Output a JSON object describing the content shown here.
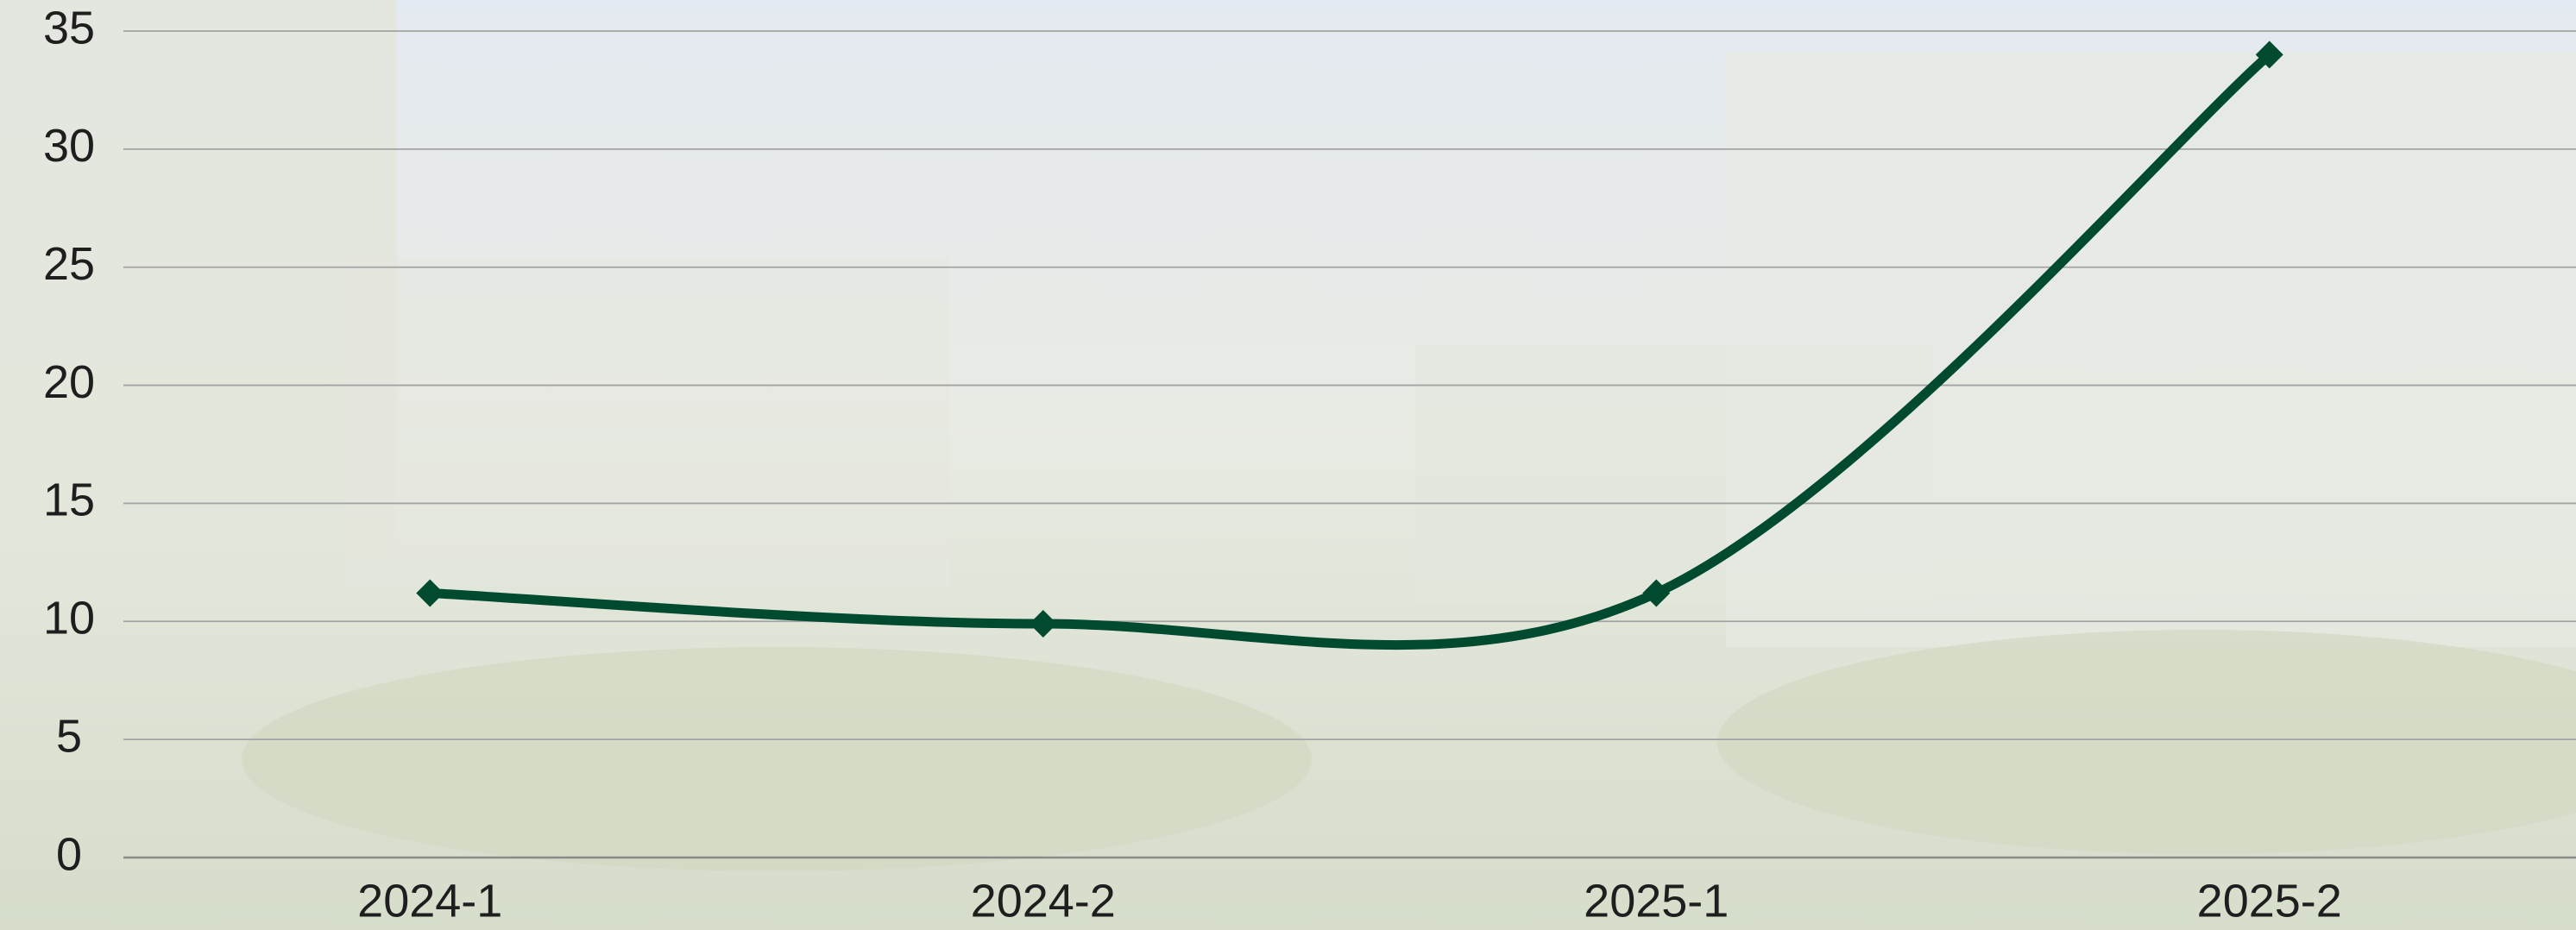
{
  "chart_data": {
    "type": "line",
    "categories": [
      "2024-1",
      "2024-2",
      "2025-1",
      "2025-2"
    ],
    "series": [
      {
        "color": "#004a30",
        "values": [
          11.2,
          9.9,
          11.2,
          34
        ]
      }
    ],
    "ylim": [
      0,
      35
    ],
    "yticks": [
      0,
      5,
      10,
      15,
      20,
      25,
      30,
      35
    ],
    "grid": true
  }
}
